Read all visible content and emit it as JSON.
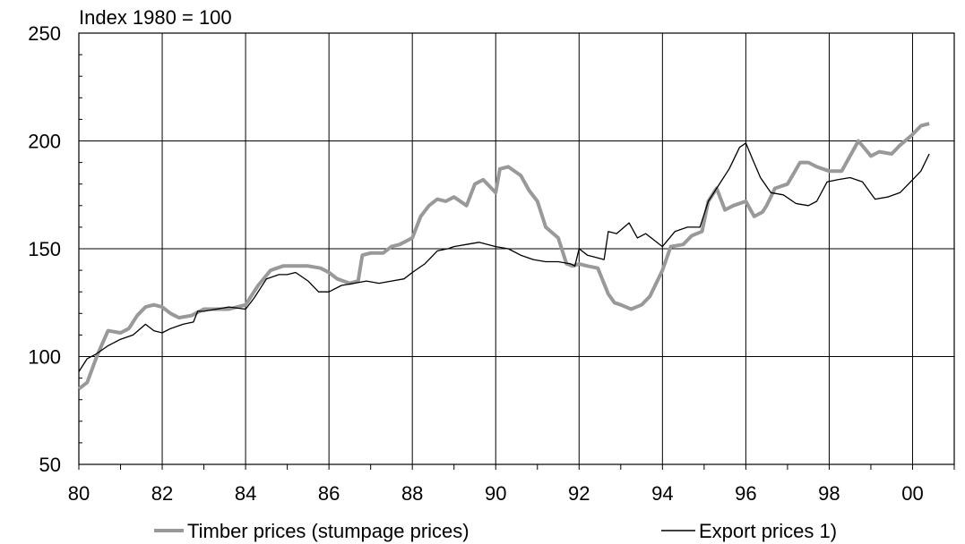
{
  "chart_data": {
    "type": "line",
    "ylabel": "Index 1980 = 100",
    "ylim": [
      50,
      250
    ],
    "yticks": [
      50,
      100,
      150,
      200,
      250
    ],
    "xlim": [
      1980,
      2001
    ],
    "xticks": [
      1980,
      1982,
      1984,
      1986,
      1988,
      1990,
      1992,
      1994,
      1996,
      1998,
      2000
    ],
    "xtick_labels": [
      "80",
      "82",
      "84",
      "86",
      "88",
      "90",
      "92",
      "94",
      "96",
      "98",
      "00"
    ],
    "grid": true,
    "legend": "bottom",
    "series": [
      {
        "name": "Timber prices (stumpage prices)",
        "color": "#999999",
        "x": [
          1980.0,
          1980.2,
          1980.45,
          1980.7,
          1981.0,
          1981.2,
          1981.4,
          1981.6,
          1981.8,
          1982.0,
          1982.2,
          1982.4,
          1982.7,
          1983.0,
          1983.3,
          1983.6,
          1984.0,
          1984.3,
          1984.6,
          1984.9,
          1985.2,
          1985.5,
          1985.8,
          1986.0,
          1986.2,
          1986.5,
          1986.7,
          1986.8,
          1987.0,
          1987.3,
          1987.5,
          1987.7,
          1988.0,
          1988.2,
          1988.4,
          1988.6,
          1988.8,
          1989.0,
          1989.3,
          1989.5,
          1989.7,
          1990.0,
          1990.1,
          1990.3,
          1990.6,
          1990.8,
          1991.0,
          1991.2,
          1991.5,
          1991.7,
          1991.85,
          1992.0,
          1992.2,
          1992.45,
          1992.7,
          1992.85,
          1993.0,
          1993.25,
          1993.5,
          1993.7,
          1993.9,
          1994.0,
          1994.2,
          1994.5,
          1994.7,
          1994.95,
          1995.1,
          1995.3,
          1995.5,
          1995.7,
          1996.0,
          1996.2,
          1996.4,
          1996.5,
          1996.7,
          1997.0,
          1997.3,
          1997.5,
          1997.7,
          1998.0,
          1998.3,
          1998.5,
          1998.7,
          1999.0,
          1999.2,
          1999.5,
          1999.7,
          2000.0,
          2000.2,
          2000.4
        ],
        "values": [
          85,
          88,
          101,
          112,
          111,
          113,
          119,
          123,
          124,
          123,
          120,
          118,
          119,
          122,
          122,
          122,
          124,
          133,
          140,
          142,
          142,
          142,
          141,
          139,
          136,
          134,
          135,
          147,
          148,
          148,
          151,
          152,
          155,
          165,
          170,
          173,
          172,
          174,
          170,
          180,
          182,
          176,
          187,
          188,
          184,
          177,
          172,
          160,
          155,
          143,
          142,
          143,
          142,
          141,
          129,
          125,
          124,
          122,
          124,
          128,
          136,
          140,
          151,
          152,
          156,
          158,
          172,
          178,
          168,
          170,
          172,
          165,
          167,
          170,
          178,
          180,
          190,
          190,
          188,
          186,
          186,
          193,
          200,
          193,
          195,
          194,
          198,
          203,
          207,
          208
        ]
      },
      {
        "name": "Export prices 1)",
        "color": "#000000",
        "x": [
          1980.0,
          1980.2,
          1980.4,
          1980.7,
          1981.0,
          1981.3,
          1981.6,
          1981.8,
          1982.0,
          1982.2,
          1982.5,
          1982.75,
          1982.85,
          1983.0,
          1983.3,
          1983.6,
          1984.0,
          1984.2,
          1984.5,
          1984.8,
          1985.0,
          1985.2,
          1985.5,
          1985.75,
          1986.0,
          1986.3,
          1986.6,
          1986.9,
          1987.2,
          1987.5,
          1987.8,
          1988.0,
          1988.3,
          1988.6,
          1988.85,
          1989.0,
          1989.3,
          1989.6,
          1990.0,
          1990.3,
          1990.6,
          1990.9,
          1991.2,
          1991.5,
          1991.8,
          1991.9,
          1992.0,
          1992.2,
          1992.4,
          1992.6,
          1992.7,
          1992.9,
          1993.2,
          1993.4,
          1993.6,
          1994.0,
          1994.3,
          1994.6,
          1994.9,
          1995.1,
          1995.3,
          1995.6,
          1995.85,
          1996.0,
          1996.15,
          1996.35,
          1996.6,
          1996.9,
          1997.2,
          1997.5,
          1997.7,
          1997.95,
          1998.2,
          1998.5,
          1998.8,
          1999.1,
          1999.4,
          1999.7,
          2000.0,
          2000.2,
          2000.4
        ],
        "values": [
          93,
          99,
          101,
          105,
          108,
          110,
          115,
          112,
          111,
          113,
          115,
          116,
          121,
          121,
          122,
          123,
          122,
          127,
          136,
          138,
          138,
          139,
          135,
          130,
          130,
          133,
          134,
          135,
          134,
          135,
          136,
          139,
          143,
          149,
          150,
          151,
          152,
          153,
          151,
          150,
          147,
          145,
          144,
          144,
          143,
          142,
          150,
          147,
          146,
          145,
          158,
          157,
          162,
          155,
          157,
          151,
          158,
          160,
          160,
          172,
          178,
          187,
          197,
          199,
          192,
          183,
          176,
          175,
          171,
          170,
          172,
          181,
          182,
          183,
          181,
          173,
          174,
          176,
          182,
          186,
          194
        ]
      }
    ]
  }
}
